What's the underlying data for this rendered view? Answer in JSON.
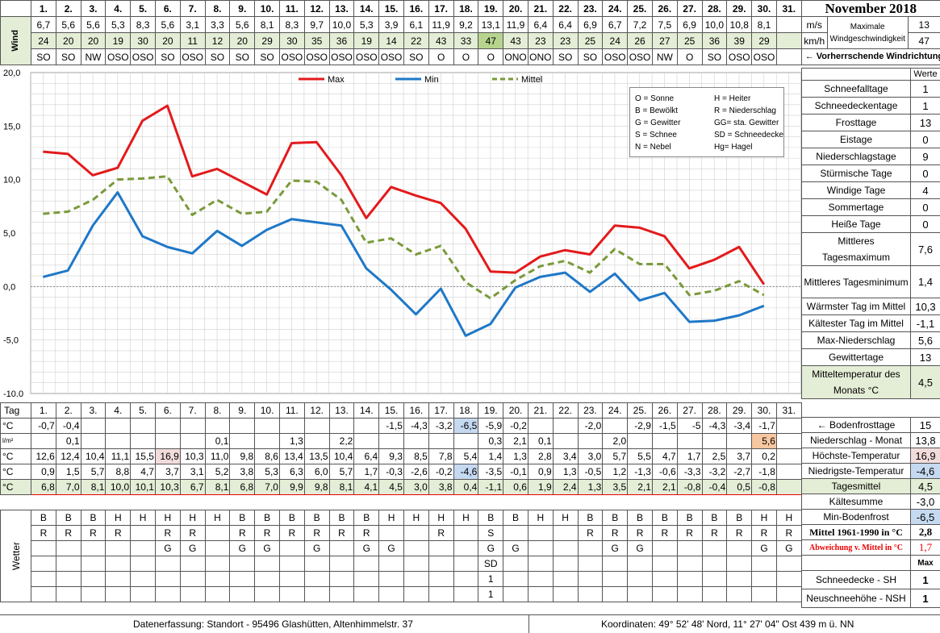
{
  "month_title": "November 2018",
  "days": [
    "1.",
    "2.",
    "3.",
    "4.",
    "5.",
    "6.",
    "7.",
    "8.",
    "9.",
    "10.",
    "11.",
    "12.",
    "13.",
    "14.",
    "15.",
    "16.",
    "17.",
    "18.",
    "19.",
    "20.",
    "21.",
    "22.",
    "23.",
    "24.",
    "25.",
    "26.",
    "27.",
    "28.",
    "29.",
    "30.",
    "31."
  ],
  "wind": {
    "side_label": "Wind",
    "ms": [
      "6,7",
      "5,6",
      "5,6",
      "5,3",
      "8,3",
      "5,6",
      "3,1",
      "3,3",
      "5,6",
      "8,1",
      "8,3",
      "9,7",
      "10,0",
      "5,3",
      "3,9",
      "6,1",
      "11,9",
      "9,2",
      "13,1",
      "11,9",
      "6,4",
      "6,4",
      "6,9",
      "6,7",
      "7,2",
      "7,5",
      "6,9",
      "10,0",
      "10,8",
      "8,1",
      ""
    ],
    "kmh": [
      "24",
      "20",
      "20",
      "19",
      "30",
      "20",
      "11",
      "12",
      "20",
      "29",
      "30",
      "35",
      "36",
      "19",
      "14",
      "22",
      "43",
      "33",
      "47",
      "43",
      "23",
      "23",
      "25",
      "24",
      "26",
      "27",
      "25",
      "36",
      "39",
      "29",
      ""
    ],
    "dir": [
      "SO",
      "SO",
      "NW",
      "OSO",
      "OSO",
      "SO",
      "OSO",
      "SO",
      "SO",
      "SO",
      "OSO",
      "OSO",
      "OSO",
      "OSO",
      "OSO",
      "SO",
      "O",
      "O",
      "O",
      "ONO",
      "ONO",
      "SO",
      "SO",
      "OSO",
      "OSO",
      "NW",
      "O",
      "SO",
      "OSO",
      "OSO",
      ""
    ],
    "unit_ms": "m/s",
    "unit_kmh": "km/h",
    "max_label": "Maximale Windgeschwindigkeit",
    "max_ms": "13",
    "max_kmh": "47",
    "dir_label": "← Vorherrschende Windrichtung"
  },
  "legend_box": {
    "col1": [
      "O = Sonne",
      "B = Bewölkt",
      "G = Gewitter",
      "S = Schnee",
      "N = Nebel"
    ],
    "col2": [
      "H = Heiter",
      "R = Niederschlag",
      "GG= sta. Gewitter",
      "SD = Schneedecke",
      "Hg= Hagel"
    ]
  },
  "chart_data": {
    "type": "line",
    "x": [
      1,
      2,
      3,
      4,
      5,
      6,
      7,
      8,
      9,
      10,
      11,
      12,
      13,
      14,
      15,
      16,
      17,
      18,
      19,
      20,
      21,
      22,
      23,
      24,
      25,
      26,
      27,
      28,
      29,
      30
    ],
    "series": [
      {
        "name": "Max",
        "color": "#e31a1c",
        "dash": false,
        "values": [
          12.6,
          12.4,
          10.4,
          11.1,
          15.5,
          16.9,
          10.3,
          11.0,
          9.8,
          8.6,
          13.4,
          13.5,
          10.4,
          6.4,
          9.3,
          8.5,
          7.8,
          5.4,
          1.4,
          1.3,
          2.8,
          3.4,
          3.0,
          5.7,
          5.5,
          4.7,
          1.7,
          2.5,
          3.7,
          0.2
        ]
      },
      {
        "name": "Min",
        "color": "#1f78c8",
        "dash": false,
        "values": [
          0.9,
          1.5,
          5.7,
          8.8,
          4.7,
          3.7,
          3.1,
          5.2,
          3.8,
          5.3,
          6.3,
          6.0,
          5.7,
          1.7,
          -0.3,
          -2.6,
          -0.2,
          -4.6,
          -3.5,
          -0.1,
          0.9,
          1.3,
          -0.5,
          1.2,
          -1.3,
          -0.6,
          -3.3,
          -3.2,
          -2.7,
          -1.8
        ]
      },
      {
        "name": "Mittel",
        "color": "#7a9a3a",
        "dash": true,
        "values": [
          6.8,
          7.0,
          8.1,
          10.0,
          10.1,
          10.3,
          6.7,
          8.1,
          6.8,
          7.0,
          9.9,
          9.8,
          8.1,
          4.1,
          4.5,
          3.0,
          3.8,
          0.4,
          -1.1,
          0.6,
          1.9,
          2.4,
          1.3,
          3.5,
          2.1,
          2.1,
          -0.8,
          -0.4,
          0.5,
          -0.8
        ]
      }
    ],
    "ylim": [
      -10,
      20
    ],
    "yticks": [
      "20,0",
      "15,0",
      "10,0",
      "5,0",
      "0,0",
      "-5,0",
      "-10,0"
    ],
    "grid": true,
    "legend_position": "top"
  },
  "summary": {
    "header": "Werte",
    "rows": [
      {
        "label": "Schneefalltage",
        "value": "1"
      },
      {
        "label": "Schneedeckentage",
        "value": "1"
      },
      {
        "label": "Frosttage",
        "value": "13"
      },
      {
        "label": "Eistage",
        "value": "0"
      },
      {
        "label": "Niederschlagstage",
        "value": "9"
      },
      {
        "label": "Stürmische Tage",
        "value": "0"
      },
      {
        "label": "Windige Tage",
        "value": "4"
      },
      {
        "label": "Sommertage",
        "value": "0"
      },
      {
        "label": "Heiße Tage",
        "value": "0"
      },
      {
        "label": "Mittleres Tagesmaximum",
        "value": "7,6"
      },
      {
        "label": "Mittleres Tagesminimum",
        "value": "1,4"
      },
      {
        "label": "Wärmster Tag im Mittel",
        "value": "10,3"
      },
      {
        "label": "Kältester Tag im Mittel",
        "value": "-1,1"
      },
      {
        "label": "Max-Niederschlag",
        "value": "5,6"
      },
      {
        "label": "Gewittertage",
        "value": "13"
      },
      {
        "label": "Mitteltemperatur des Monats °C",
        "value": "4,5"
      }
    ]
  },
  "bottom": {
    "tag_label": "Tag",
    "rows": {
      "ground_frost": [
        "-0,7",
        "-0,4",
        "",
        "",
        "",
        "",
        "",
        "",
        "",
        "",
        "",
        "",
        "",
        "",
        "-1,5",
        "-4,3",
        "-3,2",
        "-6,5",
        "-5,9",
        "-0,2",
        "",
        "",
        "-2,0",
        "",
        "-2,9",
        "-1,5",
        "-5",
        "-4,3",
        "-3,4",
        "-1,7",
        ""
      ],
      "precip": [
        "",
        "0,1",
        "",
        "",
        "",
        "",
        "",
        "0,1",
        "",
        "",
        "1,3",
        "",
        "2,2",
        "",
        "",
        "",
        "",
        "",
        "0,3",
        "2,1",
        "0,1",
        "",
        "",
        "2,0",
        "",
        "",
        "",
        "",
        "",
        "5,6",
        ""
      ],
      "tmax": [
        "12,6",
        "12,4",
        "10,4",
        "11,1",
        "15,5",
        "16,9",
        "10,3",
        "11,0",
        "9,8",
        "8,6",
        "13,4",
        "13,5",
        "10,4",
        "6,4",
        "9,3",
        "8,5",
        "7,8",
        "5,4",
        "1,4",
        "1,3",
        "2,8",
        "3,4",
        "3,0",
        "5,7",
        "5,5",
        "4,7",
        "1,7",
        "2,5",
        "3,7",
        "0,2",
        ""
      ],
      "tmin": [
        "0,9",
        "1,5",
        "5,7",
        "8,8",
        "4,7",
        "3,7",
        "3,1",
        "5,2",
        "3,8",
        "5,3",
        "6,3",
        "6,0",
        "5,7",
        "1,7",
        "-0,3",
        "-2,6",
        "-0,2",
        "-4,6",
        "-3,5",
        "-0,1",
        "0,9",
        "1,3",
        "-0,5",
        "1,2",
        "-1,3",
        "-0,6",
        "-3,3",
        "-3,2",
        "-2,7",
        "-1,8",
        ""
      ],
      "tmean": [
        "6,8",
        "7,0",
        "8,1",
        "10,0",
        "10,1",
        "10,3",
        "6,7",
        "8,1",
        "6,8",
        "7,0",
        "9,9",
        "9,8",
        "8,1",
        "4,1",
        "4,5",
        "3,0",
        "3,8",
        "0,4",
        "-1,1",
        "0,6",
        "1,9",
        "2,4",
        "1,3",
        "3,5",
        "2,1",
        "2,1",
        "-0,8",
        "-0,4",
        "0,5",
        "-0,8",
        ""
      ]
    },
    "units": {
      "c": "°C",
      "lm2": "l/m²"
    },
    "weather_label": "Wetter",
    "weather_rows": [
      [
        "B",
        "B",
        "B",
        "H",
        "H",
        "H",
        "H",
        "H",
        "B",
        "B",
        "B",
        "B",
        "B",
        "B",
        "H",
        "H",
        "H",
        "H",
        "B",
        "B",
        "H",
        "H",
        "B",
        "B",
        "B",
        "B",
        "B",
        "B",
        "B",
        "H",
        "H"
      ],
      [
        "R",
        "R",
        "R",
        "R",
        "",
        "R",
        "R",
        "",
        "R",
        "R",
        "R",
        "R",
        "R",
        "R",
        "",
        "",
        "R",
        "",
        "S",
        "",
        "",
        "",
        "R",
        "R",
        "R",
        "R",
        "R",
        "R",
        "R",
        "R",
        "R"
      ],
      [
        "",
        "",
        "",
        "",
        "",
        "G",
        "G",
        "",
        "G",
        "G",
        "",
        "G",
        "",
        "G",
        "G",
        "",
        "",
        "",
        "G",
        "G",
        "",
        "",
        "",
        "G",
        "G",
        "",
        "",
        "",
        "",
        "G",
        "G"
      ],
      [
        "",
        "",
        "",
        "",
        "",
        "",
        "",
        "",
        "",
        "",
        "",
        "",
        "",
        "",
        "",
        "",
        "",
        "",
        "SD",
        "",
        "",
        "",
        "",
        "",
        "",
        "",
        "",
        "",
        "",
        "",
        ""
      ],
      [
        "",
        "",
        "",
        "",
        "",
        "",
        "",
        "",
        "",
        "",
        "",
        "",
        "",
        "",
        "",
        "",
        "",
        "",
        "1",
        "",
        "",
        "",
        "",
        "",
        "",
        "",
        "",
        "",
        "",
        "",
        ""
      ],
      [
        "",
        "",
        "",
        "",
        "",
        "",
        "",
        "",
        "",
        "",
        "",
        "",
        "",
        "",
        "",
        "",
        "",
        "",
        "1",
        "",
        "",
        "",
        "",
        "",
        "",
        "",
        "",
        "",
        "",
        "",
        ""
      ]
    ]
  },
  "bottom_summary": [
    {
      "label": "← Bodenfrosttage",
      "value": "15"
    },
    {
      "label": "Niederschlag - Monat",
      "value": "13,8"
    },
    {
      "label": "Höchste-Temperatur",
      "value": "16,9"
    },
    {
      "label": "Niedrigste-Temperatur",
      "value": "-4,6"
    },
    {
      "label": "Tagesmittel",
      "value": "4,5"
    },
    {
      "label": "Kältesumme",
      "value": "-3,0"
    },
    {
      "label": "Min-Bodenfrost",
      "value": "-6,5"
    },
    {
      "label": "Mittel 1961-1990 in °C",
      "value": "2,8"
    },
    {
      "label": "Abweichung v. Mittel in °C",
      "value": "1,7"
    },
    {
      "label": "",
      "value": "Max"
    },
    {
      "label": "Schneedecke -  SH",
      "value": "1"
    },
    {
      "label": "Neuschneehöhe - NSH",
      "value": "1"
    }
  ],
  "footer": {
    "left": "Datenerfassung:  Standort -  95496  Glashütten, Altenhimmelstr. 37",
    "right": "Koordinaten:  49° 52' 48' Nord,   11° 27' 04\" Ost   439 m ü. NN"
  }
}
